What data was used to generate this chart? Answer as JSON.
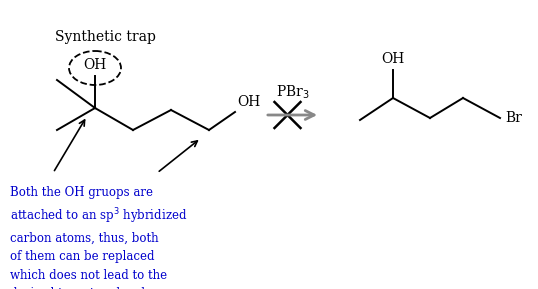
{
  "bg_color": "#ffffff",
  "text_color_blue": "#0000cc",
  "text_color_black": "#000000",
  "title": "Synthetic trap",
  "pbr3_label": "PBr$_3$",
  "oh_label": "OH",
  "br_label": "Br",
  "blue_text": "Both the OH gruops are\nattached to an sp$^3$ hybridized\ncarbon atoms, thus, both\nof them can be replaced\nwhich does not lead to the\ndesired target molecule.",
  "lw": 1.4,
  "fontsize_mol": 10,
  "fontsize_title": 10,
  "fontsize_blue": 8.5
}
